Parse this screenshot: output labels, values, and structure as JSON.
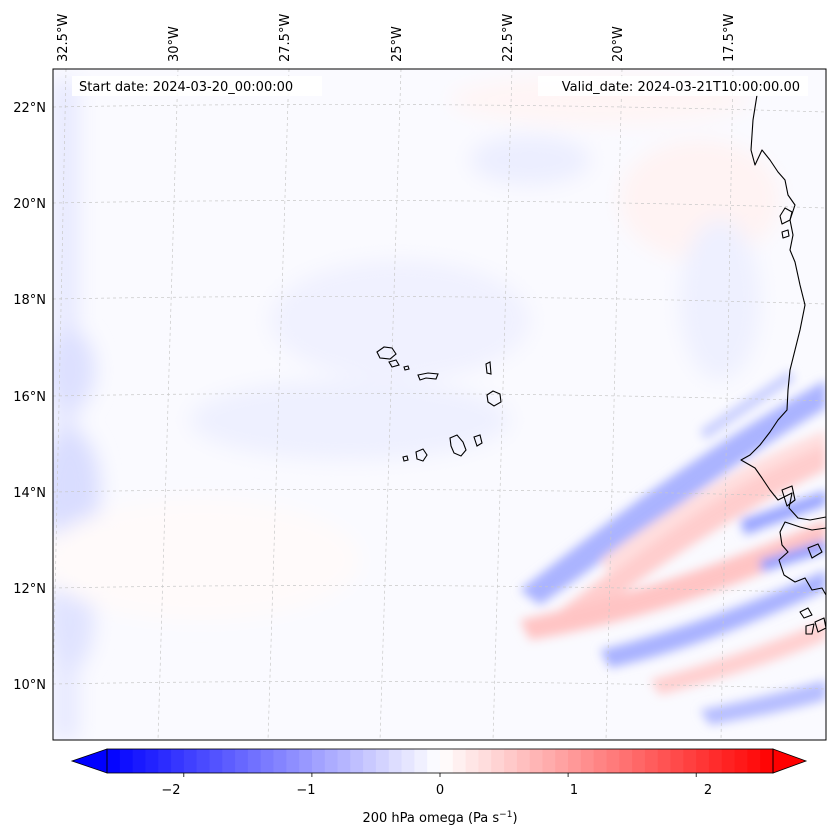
{
  "map": {
    "start_date_label": "Start date: 2024-03-20_00:00:00",
    "valid_date_label": "Valid_date: 2024-03-21T10:00:00.00",
    "lon_labels": [
      "32.5°W",
      "30°W",
      "27.5°W",
      "25°W",
      "22.5°W",
      "20°W",
      "17.5°W"
    ],
    "lat_labels": [
      "22°N",
      "20°N",
      "18°N",
      "16°N",
      "14°N",
      "12°N",
      "10°N"
    ],
    "land_outline_color": "#000000",
    "gridline_color": "#bbbbbb"
  },
  "colorbar": {
    "label_main": "200 hPa omega (Pa s",
    "label_exp": "−1",
    "label_close": ")",
    "tick_labels": [
      "−2",
      "−1",
      "0",
      "1",
      "2"
    ],
    "ticks": [
      -2,
      -1,
      0,
      1,
      2
    ],
    "range": [
      -2.6,
      2.6
    ],
    "levels": 52,
    "colormap": "bwr",
    "color_min": "#0000ff",
    "color_mid": "#ffffff",
    "color_max": "#ff0000"
  }
}
